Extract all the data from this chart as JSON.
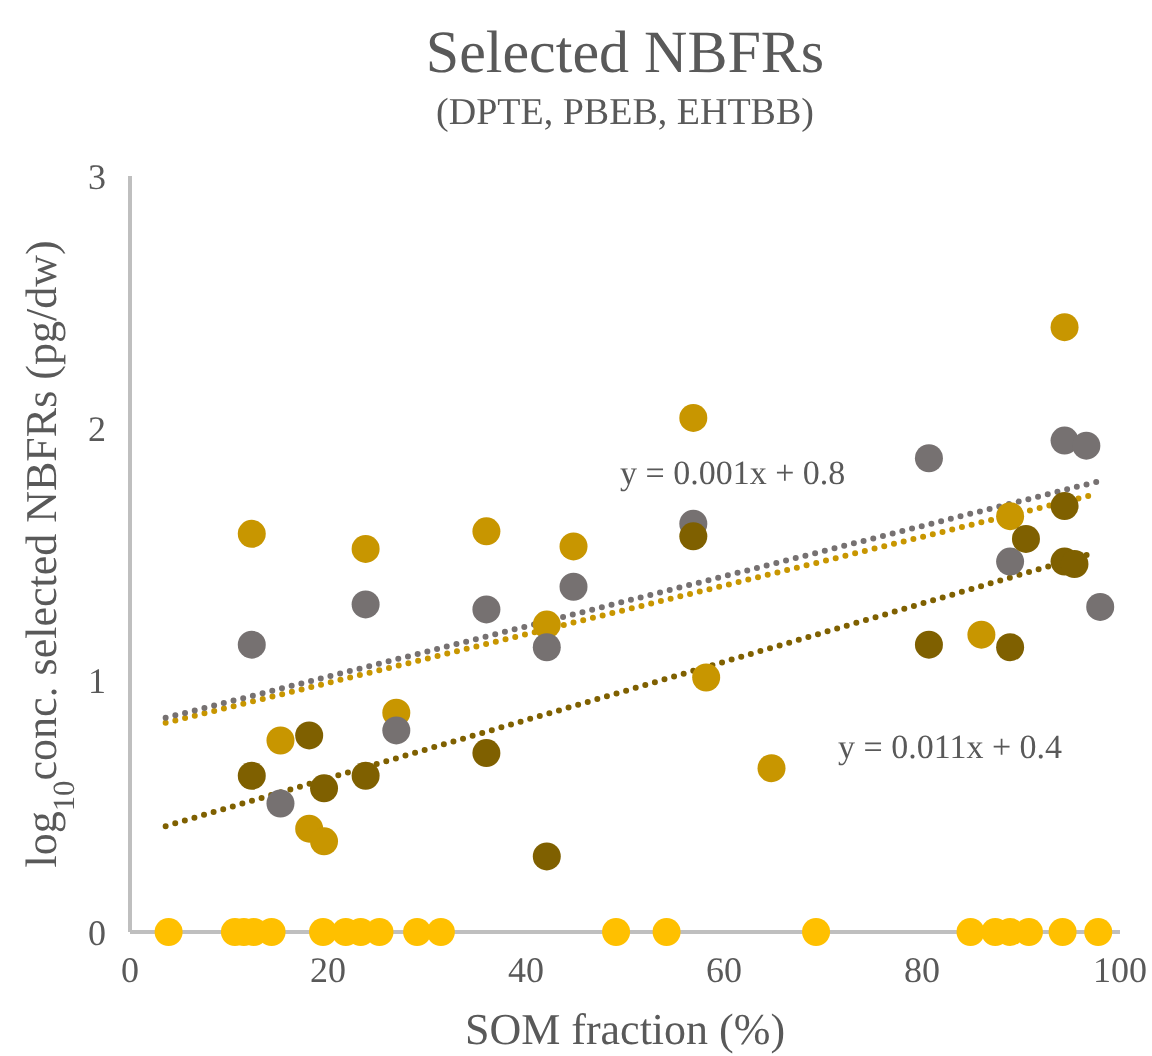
{
  "chart_data": {
    "type": "scatter",
    "title": "Selected NBFRs",
    "subtitle": "(DPTE, PBEB, EHTBB)",
    "xlabel": "SOM fraction (%)",
    "ylabel": "log$_{10}$conc. selected NBFRs (pg/dw)",
    "xlim": [
      0,
      100
    ],
    "ylim": [
      0,
      3
    ],
    "xticks": [
      0,
      20,
      40,
      60,
      80,
      100
    ],
    "yticks": [
      0,
      1,
      2,
      3
    ],
    "grid": false,
    "marker": "circle",
    "series": [
      {
        "color": "#ffc000",
        "x": [
          3.9,
          10.6,
          11.5,
          12.5,
          14.3,
          19.5,
          21.8,
          23.3,
          25.2,
          29.0,
          31.4,
          49.1,
          54.2,
          69.3,
          84.9,
          87.4,
          88.9,
          90.8,
          94.2,
          97.8
        ],
        "values": [
          0,
          0,
          0,
          0,
          0,
          0,
          0,
          0,
          0,
          0,
          0,
          0,
          0,
          0,
          0,
          0,
          0,
          0,
          0,
          0
        ]
      },
      {
        "color": "#c89600",
        "x": [
          12.3,
          23.8,
          36.0,
          44.8,
          42.1,
          26.9,
          15.2,
          18.1,
          19.6,
          56.9,
          94.4,
          88.9,
          86.0,
          64.8,
          58.2
        ],
        "values": [
          1.58,
          1.52,
          1.59,
          1.53,
          1.22,
          0.87,
          0.76,
          0.41,
          0.36,
          2.04,
          2.4,
          1.65,
          1.18,
          0.65,
          1.01
        ]
      },
      {
        "color": "#767171",
        "x": [
          12.3,
          23.8,
          36.0,
          44.8,
          42.1,
          26.9,
          15.2,
          56.9,
          80.7,
          94.4,
          96.6,
          88.9,
          98.0
        ],
        "values": [
          1.14,
          1.3,
          1.28,
          1.37,
          1.13,
          0.8,
          0.51,
          1.62,
          1.88,
          1.95,
          1.93,
          1.47,
          1.29
        ]
      },
      {
        "color": "#7f6000",
        "x": [
          12.3,
          18.1,
          19.6,
          23.8,
          36.0,
          42.1,
          56.9,
          80.7,
          88.9,
          90.5,
          94.4,
          94.4,
          95.4
        ],
        "values": [
          0.62,
          0.78,
          0.57,
          0.62,
          0.71,
          0.3,
          1.57,
          1.14,
          1.13,
          1.56,
          1.69,
          1.47,
          1.46
        ]
      },
      {
        "type": "line",
        "line_style": "dotted",
        "marker": "none",
        "color": "#c89600",
        "x": [
          3.6,
          96.8
        ],
        "values": [
          0.83,
          1.73
        ]
      },
      {
        "type": "line",
        "line_style": "dotted",
        "marker": "none",
        "color": "#767171",
        "x": [
          3.6,
          98
        ],
        "values": [
          0.85,
          1.79
        ]
      },
      {
        "type": "line",
        "line_style": "dotted",
        "marker": "none",
        "color": "#7f6000",
        "x": [
          3.6,
          97
        ],
        "values": [
          0.42,
          1.5
        ]
      }
    ],
    "annotations": [
      "y = 0.001x + 0.8",
      "y = 0.011x + 0.4"
    ]
  }
}
